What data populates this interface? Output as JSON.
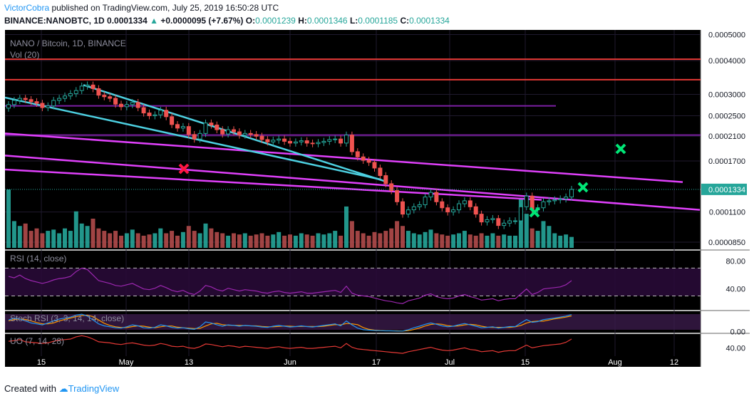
{
  "header": {
    "username": "VictorCobra",
    "published_text": " published on TradingView.com, July 25, 2019 16:50:28 UTC",
    "symbol": "BINANCE:NANOBTC, 1D",
    "last": "0.0001334",
    "change": "+0.0000095 (+7.67%)",
    "o_label": "O:",
    "o_value": "0.0001239",
    "h_label": "H:",
    "h_value": "0.0001346",
    "l_label": "L:",
    "l_value": "0.0001185",
    "c_label": "C:",
    "c_value": "0.0001334"
  },
  "chart_data": {
    "type": "candlestick",
    "legend_main": "NANO / Bitcoin, 1D, BINANCE",
    "legend_vol": "Vol (20)",
    "y_scale": "log",
    "y_ticks": [
      "0.0005000",
      "0.0004000",
      "0.0003000",
      "0.0002500",
      "0.0002100",
      "0.0001700",
      "0.0001100",
      "0.0000850"
    ],
    "y_tick_values": [
      0.0005,
      0.0004,
      0.0003,
      0.00025,
      0.00021,
      0.00017,
      0.00011,
      8.5e-05
    ],
    "last_price_label": "0.0001334",
    "last_price": 0.0001334,
    "x_ticks": [
      "15",
      "May",
      "13",
      "Jun",
      "17",
      "Jul",
      "15",
      "Aug",
      "12"
    ],
    "colors": {
      "up": "#26a69a",
      "down": "#ef5350",
      "vol_up": "#26a69a",
      "vol_down": "#b24b4b",
      "horizontal_red": "#e53935",
      "horizontal_purple": "#7b1fa2",
      "trend_magenta": "#e040fb",
      "trend_cyan": "#4dd0e1",
      "cross_red": "#ff1744",
      "cross_green": "#00e676"
    },
    "closes": [
      0.000275,
      0.000285,
      0.00029,
      0.000287,
      0.000282,
      0.000278,
      0.000268,
      0.000272,
      0.000285,
      0.00029,
      0.000296,
      0.000302,
      0.00031,
      0.000322,
      0.000325,
      0.000315,
      0.000298,
      0.000294,
      0.00029,
      0.000276,
      0.00027,
      0.000275,
      0.00028,
      0.000268,
      0.000256,
      0.00025,
      0.000252,
      0.000262,
      0.000248,
      0.000232,
      0.000225,
      0.000228,
      0.000213,
      0.000205,
      0.000215,
      0.000235,
      0.000231,
      0.000222,
      0.000214,
      0.000222,
      0.000218,
      0.000212,
      0.000215,
      0.000213,
      0.00021,
      0.000204,
      0.0002,
      0.000203,
      0.000205,
      0.000201,
      0.000198,
      0.0002,
      0.000202,
      0.000198,
      0.000197,
      0.000199,
      0.000201,
      0.000204,
      0.000205,
      0.000198,
      0.000212,
      0.000184,
      0.000176,
      0.000171,
      0.000168,
      0.00016,
      0.00015,
      0.00014,
      0.000132,
      0.00012,
      0.000108,
      0.000112,
      0.000115,
      0.000117,
      0.000125,
      0.00013,
      0.00012,
      0.000114,
      0.00011,
      0.000112,
      0.000118,
      0.000121,
      0.000115,
      0.000108,
      0.000101,
      0.000103,
      0.000104,
      9.8e-05,
      0.0001,
      0.000102,
      0.000102,
      0.000115,
      0.000126,
      0.000112,
      0.000114,
      0.00012,
      0.000121,
      0.000122,
      0.000123,
      0.000125,
      0.0001334
    ],
    "volumes": [
      48,
      22,
      18,
      20,
      14,
      16,
      12,
      14,
      15,
      12,
      16,
      14,
      30,
      20,
      18,
      24,
      16,
      14,
      12,
      14,
      10,
      12,
      15,
      12,
      10,
      11,
      12,
      16,
      12,
      14,
      10,
      13,
      18,
      14,
      12,
      20,
      16,
      13,
      12,
      10,
      12,
      11,
      12,
      10,
      11,
      12,
      10,
      11,
      13,
      10,
      11,
      10,
      12,
      11,
      10,
      12,
      11,
      12,
      14,
      10,
      34,
      22,
      14,
      12,
      10,
      13,
      12,
      14,
      16,
      22,
      18,
      14,
      12,
      11,
      13,
      15,
      12,
      11,
      10,
      11,
      12,
      14,
      11,
      10,
      12,
      10,
      12,
      10,
      11,
      10,
      10,
      40,
      28,
      16,
      14,
      22,
      18,
      12,
      10,
      11,
      9
    ],
    "horizontal_levels": [
      {
        "color": "red",
        "value": 0.000405
      },
      {
        "color": "red",
        "value": 0.00034
      },
      {
        "color": "purple",
        "value": 0.000272
      },
      {
        "color": "purple",
        "value": 0.000212
      }
    ],
    "rsi": {
      "label": "RSI (14, close)",
      "ticks": [
        "80.00",
        "40.00"
      ],
      "tick_values": [
        80,
        40
      ],
      "bands": [
        70,
        30
      ],
      "values": [
        58,
        56,
        60,
        55,
        52,
        50,
        48,
        50,
        53,
        55,
        56,
        58,
        65,
        70,
        68,
        60,
        52,
        50,
        48,
        45,
        44,
        46,
        48,
        44,
        40,
        39,
        41,
        45,
        42,
        38,
        36,
        38,
        34,
        32,
        37,
        45,
        43,
        39,
        37,
        41,
        39,
        37,
        39,
        38,
        37,
        35,
        34,
        36,
        37,
        35,
        34,
        35,
        36,
        34,
        34,
        35,
        36,
        37,
        38,
        35,
        44,
        34,
        31,
        30,
        29,
        27,
        25,
        23,
        22,
        20,
        19,
        23,
        25,
        27,
        31,
        33,
        29,
        27,
        26,
        27,
        30,
        32,
        29,
        27,
        24,
        25,
        26,
        23,
        25,
        26,
        26,
        33,
        40,
        32,
        35,
        40,
        41,
        42,
        43,
        46,
        52
      ]
    },
    "stoch_rsi": {
      "label": "Stoch RSI (3, 3, 14, 14, close)",
      "ticks": [
        "0.00"
      ],
      "tick_values": [
        0
      ],
      "k": [
        60,
        70,
        65,
        55,
        45,
        40,
        35,
        45,
        55,
        65,
        70,
        75,
        85,
        90,
        80,
        60,
        40,
        30,
        25,
        20,
        18,
        25,
        35,
        30,
        20,
        18,
        22,
        35,
        30,
        22,
        18,
        20,
        15,
        12,
        25,
        50,
        45,
        35,
        28,
        35,
        32,
        28,
        32,
        30,
        28,
        24,
        22,
        28,
        32,
        28,
        24,
        26,
        30,
        26,
        24,
        28,
        32,
        36,
        40,
        30,
        55,
        35,
        18,
        10,
        8,
        6,
        5,
        4,
        4,
        3,
        3,
        10,
        20,
        28,
        38,
        45,
        38,
        30,
        25,
        28,
        36,
        42,
        35,
        28,
        20,
        22,
        25,
        18,
        22,
        26,
        26,
        45,
        62,
        48,
        52,
        62,
        66,
        70,
        75,
        80,
        88
      ],
      "d": [
        55,
        63,
        65,
        63,
        55,
        47,
        40,
        40,
        45,
        55,
        63,
        70,
        77,
        83,
        85,
        77,
        60,
        43,
        32,
        25,
        21,
        21,
        26,
        30,
        28,
        23,
        20,
        25,
        29,
        29,
        23,
        20,
        18,
        16,
        17,
        29,
        40,
        43,
        36,
        33,
        32,
        32,
        31,
        30,
        30,
        27,
        25,
        25,
        27,
        29,
        28,
        26,
        27,
        27,
        27,
        26,
        28,
        32,
        36,
        35,
        42,
        40,
        36,
        21,
        12,
        8,
        6,
        5,
        4,
        4,
        3,
        5,
        11,
        19,
        29,
        37,
        40,
        38,
        31,
        28,
        30,
        35,
        38,
        35,
        28,
        23,
        22,
        22,
        22,
        22,
        25,
        32,
        44,
        52,
        54,
        54,
        60,
        66,
        70,
        75,
        81
      ]
    },
    "uo": {
      "label": "UO (7, 14, 28)",
      "ticks": [
        "40.00"
      ],
      "tick_values": [
        40
      ],
      "values": [
        52,
        53,
        55,
        51,
        50,
        49,
        48,
        49,
        52,
        54,
        55,
        56,
        60,
        62,
        60,
        56,
        51,
        50,
        49,
        47,
        46,
        48,
        49,
        47,
        45,
        44,
        45,
        48,
        46,
        43,
        42,
        43,
        40,
        39,
        42,
        47,
        46,
        44,
        42,
        44,
        43,
        41,
        43,
        42,
        41,
        40,
        39,
        41,
        42,
        40,
        39,
        40,
        41,
        39,
        39,
        40,
        41,
        42,
        43,
        40,
        48,
        41,
        38,
        37,
        36,
        35,
        34,
        33,
        32,
        31,
        30,
        33,
        35,
        37,
        39,
        41,
        38,
        36,
        35,
        36,
        38,
        40,
        37,
        36,
        33,
        34,
        35,
        32,
        34,
        35,
        35,
        40,
        45,
        40,
        42,
        44,
        45,
        46,
        47,
        50,
        56
      ]
    }
  },
  "footer": {
    "created_with": "Created with",
    "brand": "TradingView"
  }
}
